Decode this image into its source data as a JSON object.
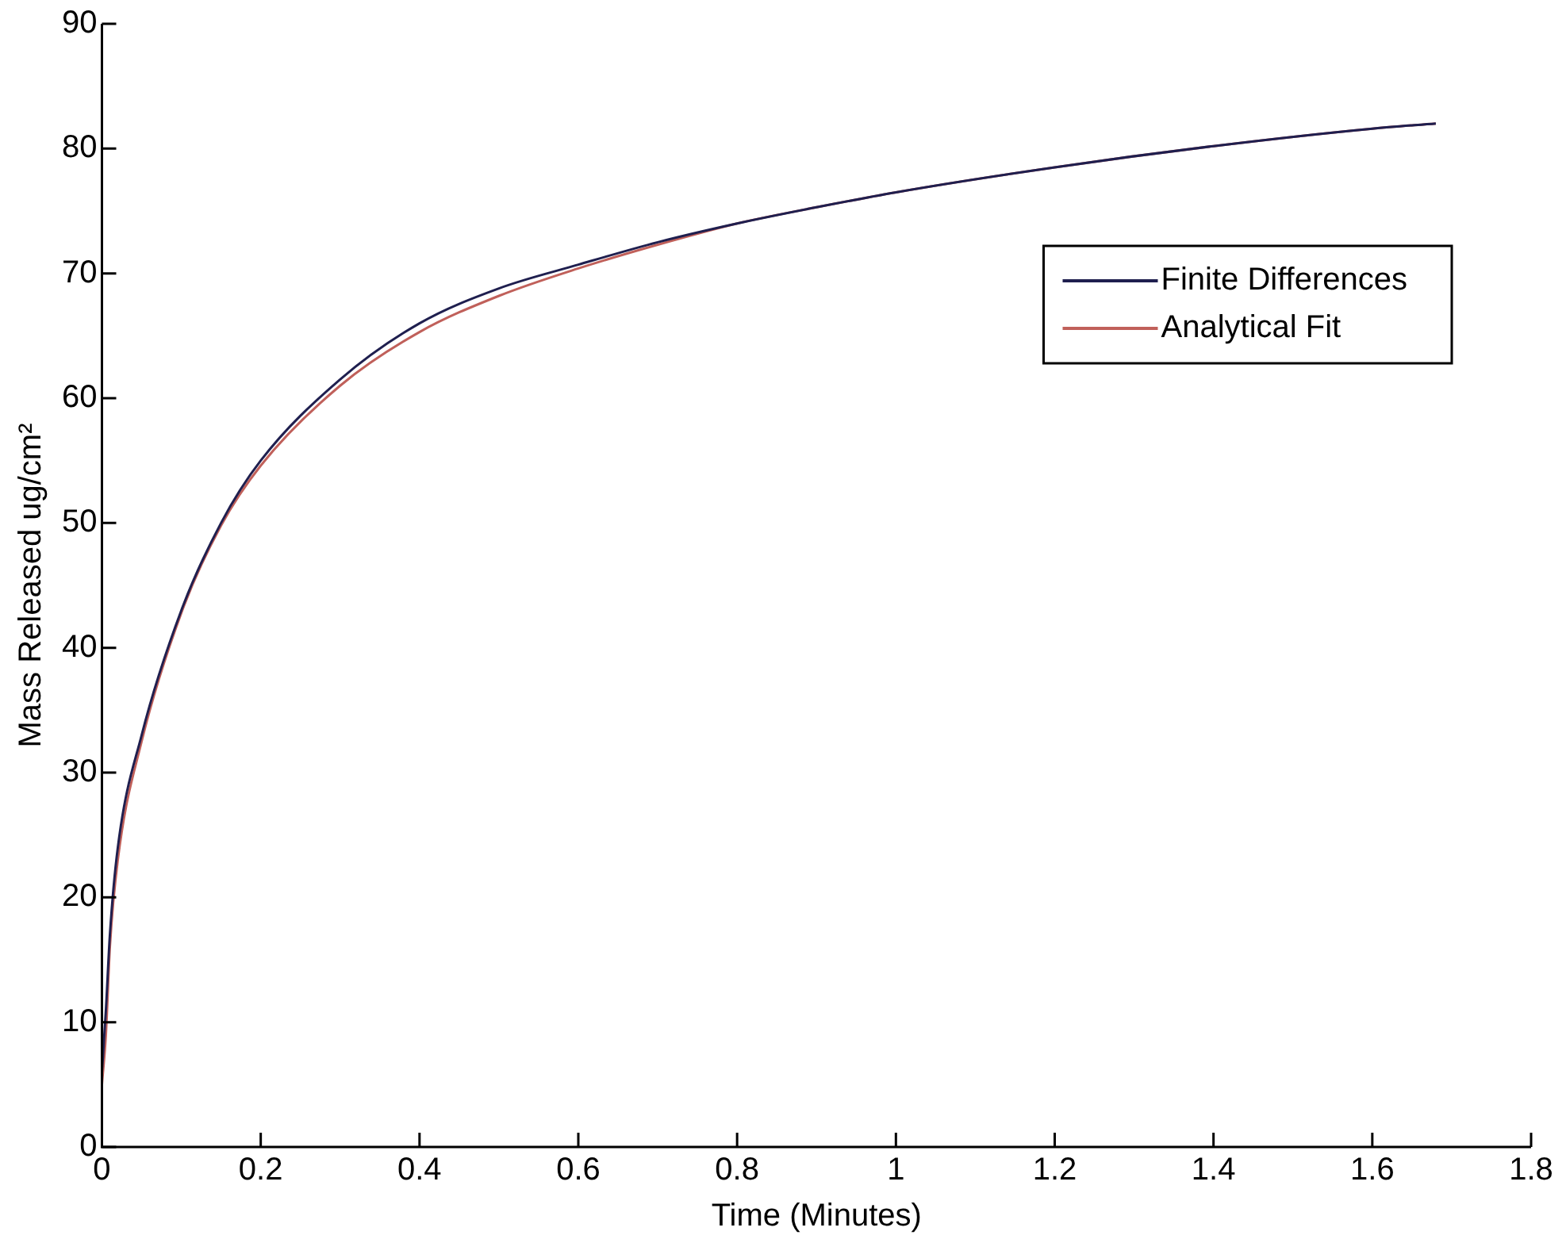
{
  "chart_data": {
    "type": "line",
    "xlabel": "Time (Minutes)",
    "ylabel": "Mass Released ug/cm²",
    "xlim": [
      0,
      1.8
    ],
    "xticks": [
      0,
      0.2,
      0.4,
      0.6,
      0.8,
      1,
      1.2,
      1.4,
      1.6,
      1.8
    ],
    "ylim": [
      0,
      90
    ],
    "yticks": [
      0,
      10,
      20,
      30,
      40,
      50,
      60,
      70,
      80,
      90
    ],
    "grid": false,
    "legend": "top right",
    "marker": "none",
    "line_style": "solid",
    "series": [
      {
        "name": "Finite Differences",
        "color": "#1f1f4f",
        "x": [
          0,
          0.005,
          0.01,
          0.02,
          0.05,
          0.1,
          0.15,
          0.2,
          0.3,
          0.4,
          0.5,
          0.6,
          0.7,
          0.8,
          0.9,
          1.0,
          1.2,
          1.4,
          1.6,
          1.68
        ],
        "values": [
          6,
          11,
          17,
          24,
          33,
          43,
          50,
          55,
          61.5,
          66,
          68.8,
          70.7,
          72.5,
          74,
          75.3,
          76.5,
          78.5,
          80.2,
          81.6,
          82
        ]
      },
      {
        "name": "Analytical Fit",
        "color": "#c0605a",
        "x": [
          0,
          0.005,
          0.01,
          0.02,
          0.05,
          0.1,
          0.15,
          0.2,
          0.3,
          0.4,
          0.5,
          0.6,
          0.7,
          0.8,
          0.9,
          1.0,
          1.2,
          1.4,
          1.6,
          1.68
        ],
        "values": [
          5,
          9,
          16,
          23,
          32.5,
          42.8,
          49.8,
          54.6,
          61,
          65.3,
          68.2,
          70.4,
          72.3,
          74,
          75.3,
          76.5,
          78.5,
          80.2,
          81.6,
          82
        ]
      }
    ]
  }
}
